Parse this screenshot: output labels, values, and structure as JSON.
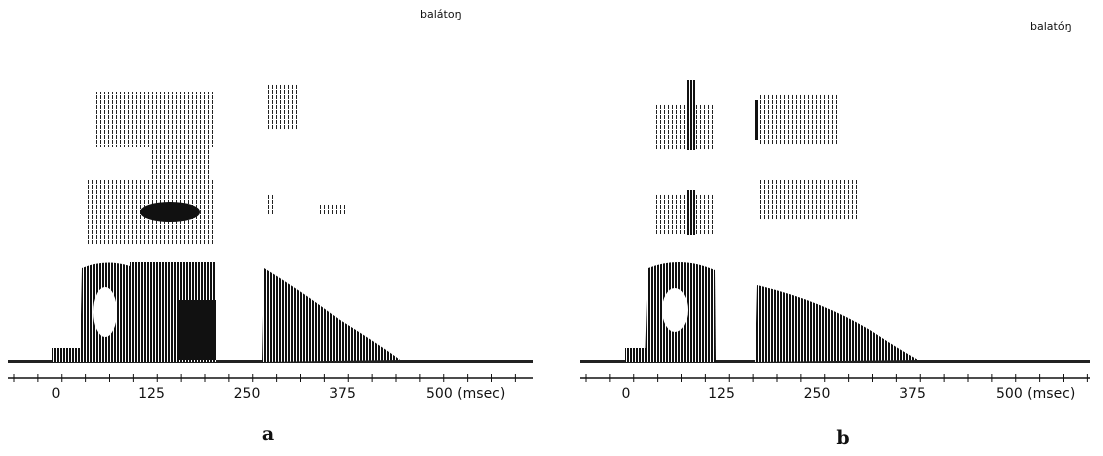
{
  "panels": [
    {
      "word": "balátoŋ",
      "ticks": [
        "0",
        "125",
        "250",
        "375",
        "500 (msec)"
      ],
      "caption": "a"
    },
    {
      "word": "balatóŋ",
      "ticks": [
        "0",
        "125",
        "250",
        "375",
        "500 (msec)"
      ],
      "caption": "b"
    }
  ]
}
